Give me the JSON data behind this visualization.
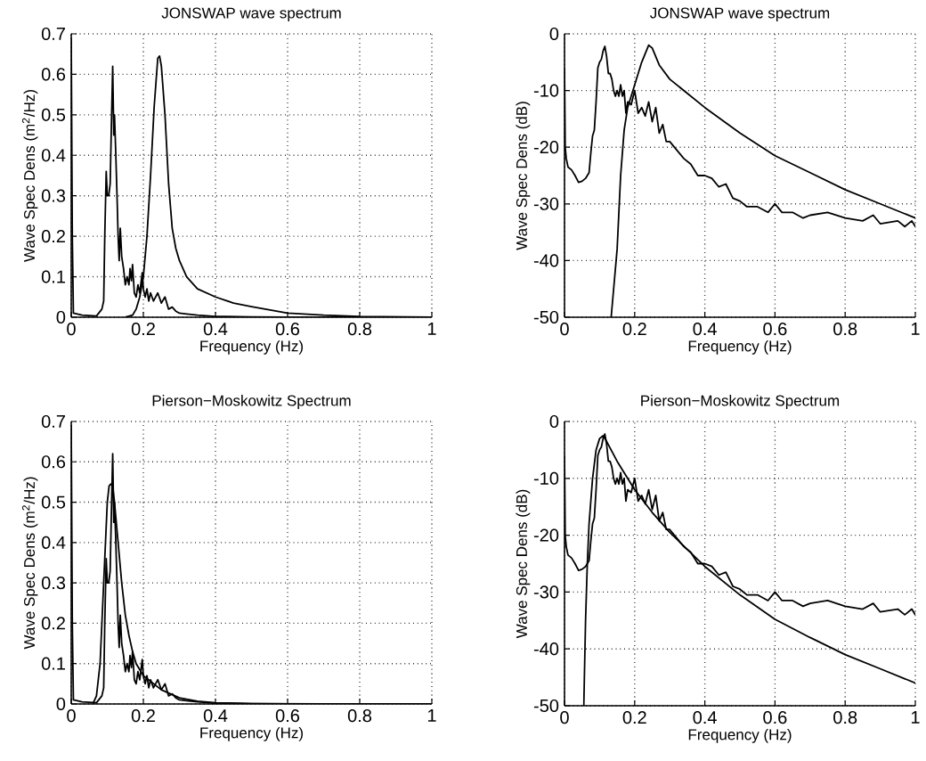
{
  "chart_data": [
    {
      "type": "line",
      "title": "JONSWAP wave spectrum",
      "xlabel": "Frequency (Hz)",
      "ylabel": "Wave Spec Dens (m$^{2}$/Hz)",
      "xlim": [
        0,
        1
      ],
      "ylim": [
        0,
        0.7
      ],
      "xticks": [
        0,
        0.2,
        0.4,
        0.6,
        0.8,
        1
      ],
      "yticks": [
        0,
        0.1,
        0.2,
        0.3,
        0.4,
        0.5,
        0.6,
        0.7
      ],
      "grid": true,
      "series": [
        {
          "color": "#000000",
          "x": [
            0,
            0.003,
            0.006,
            0.03,
            0.07,
            0.085,
            0.09,
            0.093,
            0.097,
            0.1,
            0.104,
            0.108,
            0.112,
            0.115,
            0.118,
            0.12,
            0.123,
            0.127,
            0.13,
            0.133,
            0.136,
            0.14,
            0.145,
            0.15,
            0.155,
            0.16,
            0.163,
            0.167,
            0.17,
            0.175,
            0.18,
            0.185,
            0.19,
            0.197,
            0.2,
            0.205,
            0.21,
            0.215,
            0.22,
            0.228,
            0.24,
            0.25,
            0.26,
            0.27,
            0.28,
            0.29,
            0.3,
            0.32,
            0.35,
            0.4,
            0.5,
            0.6,
            0.8,
            1.0
          ],
          "values": [
            0.69,
            0.2,
            0.01,
            0.005,
            0.003,
            0.02,
            0.04,
            0.2,
            0.36,
            0.3,
            0.3,
            0.33,
            0.5,
            0.62,
            0.45,
            0.5,
            0.42,
            0.3,
            0.2,
            0.14,
            0.22,
            0.15,
            0.12,
            0.08,
            0.1,
            0.08,
            0.12,
            0.09,
            0.13,
            0.06,
            0.05,
            0.08,
            0.06,
            0.11,
            0.07,
            0.05,
            0.07,
            0.04,
            0.06,
            0.04,
            0.06,
            0.035,
            0.05,
            0.02,
            0.025,
            0.015,
            0.01,
            0.008,
            0.005,
            0.002,
            0.001,
            0,
            0,
            0
          ]
        },
        {
          "color": "#000000",
          "x": [
            0.15,
            0.17,
            0.18,
            0.19,
            0.2,
            0.21,
            0.22,
            0.23,
            0.24,
            0.245,
            0.25,
            0.26,
            0.27,
            0.28,
            0.29,
            0.3,
            0.32,
            0.35,
            0.4,
            0.45,
            0.5,
            0.6,
            0.7,
            0.8,
            0.9,
            1.0
          ],
          "values": [
            0,
            0.005,
            0.02,
            0.05,
            0.1,
            0.2,
            0.35,
            0.52,
            0.64,
            0.645,
            0.62,
            0.5,
            0.33,
            0.22,
            0.17,
            0.14,
            0.1,
            0.07,
            0.05,
            0.035,
            0.026,
            0.01,
            0.005,
            0.002,
            0.001,
            0
          ]
        }
      ]
    },
    {
      "type": "line",
      "title": "JONSWAP wave spectrum",
      "xlabel": "Frequency (Hz)",
      "ylabel": "Wave Spec Dens (dB)",
      "xlim": [
        0,
        1
      ],
      "ylim": [
        -50,
        0
      ],
      "xticks": [
        0,
        0.2,
        0.4,
        0.6,
        0.8,
        1
      ],
      "yticks": [
        -50,
        -40,
        -30,
        -20,
        -10,
        0
      ],
      "grid": true,
      "series": [
        {
          "color": "#000000",
          "x": [
            0,
            0.002,
            0.005,
            0.01,
            0.02,
            0.03,
            0.04,
            0.05,
            0.06,
            0.07,
            0.075,
            0.08,
            0.085,
            0.09,
            0.095,
            0.1,
            0.105,
            0.11,
            0.115,
            0.12,
            0.125,
            0.13,
            0.135,
            0.14,
            0.145,
            0.15,
            0.155,
            0.16,
            0.165,
            0.17,
            0.175,
            0.18,
            0.19,
            0.2,
            0.21,
            0.22,
            0.23,
            0.24,
            0.25,
            0.26,
            0.27,
            0.28,
            0.29,
            0.3,
            0.32,
            0.34,
            0.36,
            0.38,
            0.4,
            0.42,
            0.44,
            0.46,
            0.48,
            0.5,
            0.52,
            0.55,
            0.58,
            0.6,
            0.62,
            0.65,
            0.68,
            0.7,
            0.75,
            0.8,
            0.85,
            0.88,
            0.9,
            0.95,
            0.97,
            0.99,
            1.0
          ],
          "values": [
            -6,
            -20,
            -22,
            -23.5,
            -24,
            -25,
            -26.2,
            -26,
            -25.5,
            -24.5,
            -21,
            -18,
            -17,
            -12,
            -6,
            -5,
            -4.5,
            -3,
            -2.2,
            -4,
            -7,
            -7,
            -8,
            -10,
            -11,
            -10,
            -11,
            -9,
            -11,
            -10,
            -14,
            -12,
            -12.5,
            -10,
            -14,
            -13,
            -14.5,
            -12,
            -15.5,
            -13,
            -17.5,
            -16,
            -19,
            -19,
            -20.5,
            -22,
            -23,
            -25,
            -25,
            -25.5,
            -27,
            -26.5,
            -29,
            -29.5,
            -30.5,
            -30.5,
            -31.5,
            -30,
            -31.5,
            -31.5,
            -32.5,
            -32,
            -31.5,
            -32.5,
            -33,
            -32,
            -33.5,
            -33,
            -34,
            -33,
            -34
          ]
        },
        {
          "color": "#000000",
          "x": [
            0.133,
            0.15,
            0.16,
            0.17,
            0.18,
            0.2,
            0.22,
            0.24,
            0.25,
            0.27,
            0.3,
            0.35,
            0.4,
            0.5,
            0.6,
            0.7,
            0.8,
            0.9,
            1.0
          ],
          "values": [
            -50,
            -38,
            -25,
            -17,
            -13,
            -9,
            -5,
            -2,
            -2.5,
            -5.5,
            -8,
            -10.5,
            -13,
            -17.5,
            -21.5,
            -24.5,
            -27.5,
            -30,
            -32.5
          ]
        }
      ]
    },
    {
      "type": "line",
      "title": "Pierson−Moskowitz Spectrum",
      "xlabel": "Frequency (Hz)",
      "ylabel": "Wave Spec Dens (m$^{2}$/Hz)",
      "xlim": [
        0,
        1
      ],
      "ylim": [
        0,
        0.7
      ],
      "xticks": [
        0,
        0.2,
        0.4,
        0.6,
        0.8,
        1
      ],
      "yticks": [
        0,
        0.1,
        0.2,
        0.3,
        0.4,
        0.5,
        0.6,
        0.7
      ],
      "grid": true,
      "series": [
        {
          "color": "#000000",
          "x": [
            0,
            0.003,
            0.006,
            0.03,
            0.07,
            0.085,
            0.09,
            0.093,
            0.097,
            0.1,
            0.104,
            0.108,
            0.112,
            0.115,
            0.118,
            0.12,
            0.123,
            0.127,
            0.13,
            0.133,
            0.136,
            0.14,
            0.145,
            0.15,
            0.155,
            0.16,
            0.163,
            0.167,
            0.17,
            0.175,
            0.18,
            0.185,
            0.19,
            0.197,
            0.2,
            0.205,
            0.21,
            0.215,
            0.22,
            0.228,
            0.24,
            0.25,
            0.26,
            0.27,
            0.28,
            0.29,
            0.3,
            0.32,
            0.35,
            0.4,
            0.5,
            0.6,
            0.8,
            1.0
          ],
          "values": [
            0.69,
            0.2,
            0.01,
            0.005,
            0.003,
            0.02,
            0.04,
            0.2,
            0.36,
            0.3,
            0.3,
            0.33,
            0.5,
            0.62,
            0.45,
            0.5,
            0.42,
            0.3,
            0.2,
            0.14,
            0.22,
            0.15,
            0.12,
            0.08,
            0.1,
            0.08,
            0.12,
            0.09,
            0.13,
            0.06,
            0.05,
            0.08,
            0.06,
            0.11,
            0.07,
            0.05,
            0.07,
            0.04,
            0.06,
            0.04,
            0.06,
            0.035,
            0.05,
            0.02,
            0.025,
            0.015,
            0.01,
            0.008,
            0.005,
            0.002,
            0.001,
            0,
            0,
            0
          ]
        },
        {
          "color": "#000000",
          "x": [
            0.06,
            0.07,
            0.08,
            0.09,
            0.1,
            0.105,
            0.11,
            0.115,
            0.12,
            0.13,
            0.14,
            0.15,
            0.16,
            0.17,
            0.18,
            0.2,
            0.25,
            0.3,
            0.35,
            0.4,
            0.5,
            0.7,
            1.0
          ],
          "values": [
            0,
            0.02,
            0.1,
            0.3,
            0.5,
            0.54,
            0.545,
            0.54,
            0.5,
            0.4,
            0.3,
            0.22,
            0.17,
            0.13,
            0.1,
            0.07,
            0.035,
            0.015,
            0.007,
            0.003,
            0.001,
            0,
            0
          ]
        }
      ]
    },
    {
      "type": "line",
      "title": "Pierson−Moskowitz Spectrum",
      "xlabel": "Frequency (Hz)",
      "ylabel": "Wave Spec Dens (dB)",
      "xlim": [
        0,
        1
      ],
      "ylim": [
        -50,
        0
      ],
      "xticks": [
        0,
        0.2,
        0.4,
        0.6,
        0.8,
        1
      ],
      "yticks": [
        -50,
        -40,
        -30,
        -20,
        -10,
        0
      ],
      "grid": true,
      "series": [
        {
          "color": "#000000",
          "x": [
            0,
            0.002,
            0.005,
            0.01,
            0.02,
            0.03,
            0.04,
            0.05,
            0.06,
            0.07,
            0.075,
            0.08,
            0.085,
            0.09,
            0.095,
            0.1,
            0.105,
            0.11,
            0.115,
            0.12,
            0.125,
            0.13,
            0.135,
            0.14,
            0.145,
            0.15,
            0.155,
            0.16,
            0.165,
            0.17,
            0.175,
            0.18,
            0.19,
            0.2,
            0.21,
            0.22,
            0.23,
            0.24,
            0.25,
            0.26,
            0.27,
            0.28,
            0.29,
            0.3,
            0.32,
            0.34,
            0.36,
            0.38,
            0.4,
            0.42,
            0.44,
            0.46,
            0.48,
            0.5,
            0.52,
            0.55,
            0.58,
            0.6,
            0.62,
            0.65,
            0.68,
            0.7,
            0.75,
            0.8,
            0.85,
            0.88,
            0.9,
            0.95,
            0.97,
            0.99,
            1.0
          ],
          "values": [
            -6,
            -20,
            -22,
            -23.5,
            -24,
            -25,
            -26.2,
            -26,
            -25.5,
            -24.5,
            -21,
            -18,
            -17,
            -12,
            -6,
            -5,
            -4.5,
            -3,
            -2.2,
            -4,
            -7,
            -7,
            -8,
            -10,
            -11,
            -10,
            -11,
            -9,
            -11,
            -10,
            -14,
            -12,
            -12.5,
            -10,
            -14,
            -13,
            -14.5,
            -12,
            -15.5,
            -13,
            -17.5,
            -16,
            -19,
            -19,
            -20.5,
            -22,
            -23,
            -25,
            -25,
            -25.5,
            -27,
            -26.5,
            -29,
            -29.5,
            -30.5,
            -30.5,
            -31.5,
            -30,
            -31.5,
            -31.5,
            -32.5,
            -32,
            -31.5,
            -32.5,
            -33,
            -32,
            -33.5,
            -33,
            -34,
            -33,
            -34
          ]
        },
        {
          "color": "#000000",
          "x": [
            0.055,
            0.06,
            0.065,
            0.07,
            0.08,
            0.09,
            0.1,
            0.11,
            0.12,
            0.15,
            0.2,
            0.25,
            0.3,
            0.35,
            0.4,
            0.5,
            0.6,
            0.7,
            0.8,
            0.9,
            1.0
          ],
          "values": [
            -50,
            -35,
            -25,
            -18,
            -10,
            -5,
            -3,
            -2.5,
            -3.5,
            -7,
            -12,
            -16,
            -19.5,
            -22.5,
            -25.5,
            -30.5,
            -34.8,
            -38,
            -41,
            -43.5,
            -46
          ]
        }
      ]
    }
  ]
}
